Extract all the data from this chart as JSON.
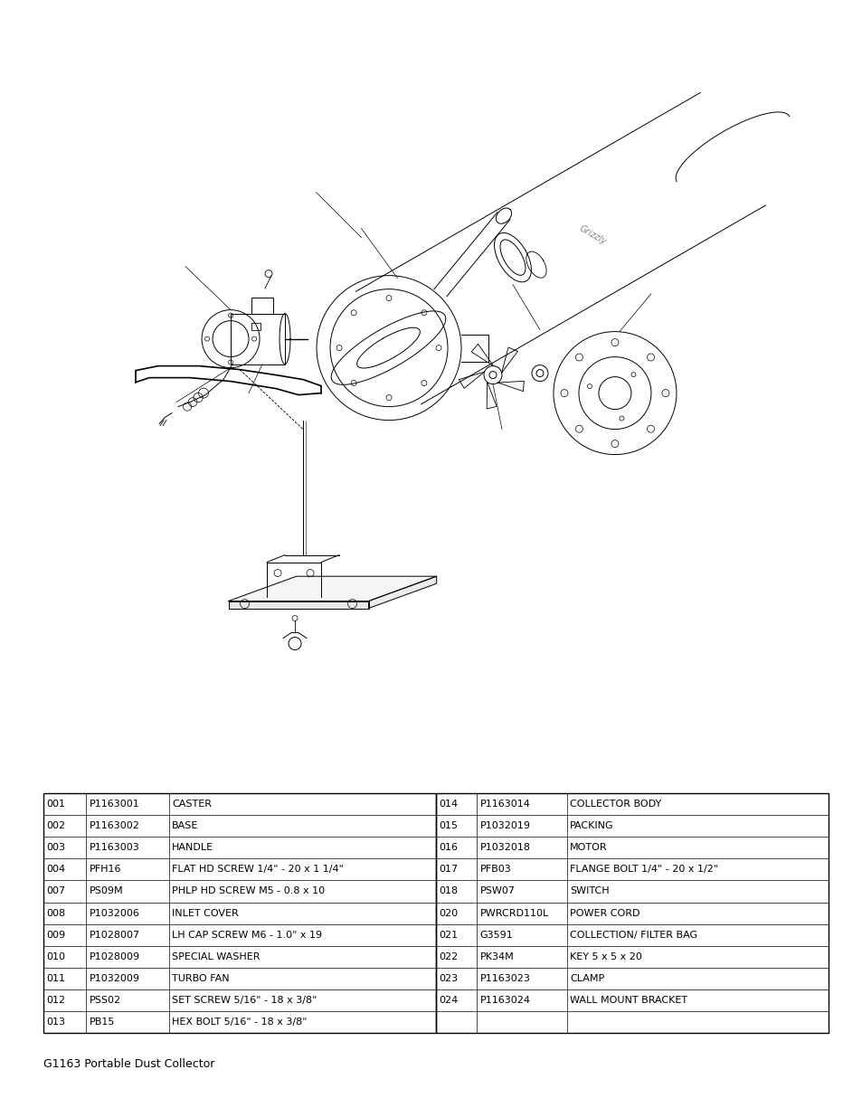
{
  "title": "G1163 Portable Dust Collector",
  "background_color": "#ffffff",
  "table_left": [
    [
      "001",
      "P1163001",
      "CASTER"
    ],
    [
      "002",
      "P1163002",
      "BASE"
    ],
    [
      "003",
      "P1163003",
      "HANDLE"
    ],
    [
      "004",
      "PFH16",
      "FLAT HD SCREW 1/4\" - 20 x 1 1/4\""
    ],
    [
      "007",
      "PS09M",
      "PHLP HD SCREW M5 - 0.8 x 10"
    ],
    [
      "008",
      "P1032006",
      "INLET COVER"
    ],
    [
      "009",
      "P1028007",
      "LH CAP SCREW M6 - 1.0\" x 19"
    ],
    [
      "010",
      "P1028009",
      "SPECIAL WASHER"
    ],
    [
      "011",
      "P1032009",
      "TURBO FAN"
    ],
    [
      "012",
      "PSS02",
      "SET SCREW 5/16\" - 18 x 3/8\""
    ],
    [
      "013",
      "PB15",
      "HEX BOLT 5/16\" - 18 x 3/8\""
    ]
  ],
  "table_right": [
    [
      "014",
      "P1163014",
      "COLLECTOR BODY"
    ],
    [
      "015",
      "P1032019",
      "PACKING"
    ],
    [
      "016",
      "P1032018",
      "MOTOR"
    ],
    [
      "017",
      "PFB03",
      "FLANGE BOLT 1/4\" - 20 x 1/2\""
    ],
    [
      "018",
      "PSW07",
      "SWITCH"
    ],
    [
      "020",
      "PWRCRD110L",
      "POWER CORD"
    ],
    [
      "021",
      "G3591",
      "COLLECTION/ FILTER BAG"
    ],
    [
      "022",
      "PK34M",
      "KEY 5 x 5 x 20"
    ],
    [
      "023",
      "P1163023",
      "CLAMP"
    ],
    [
      "024",
      "P1163024",
      "WALL MOUNT BRACKET"
    ],
    [
      "",
      "",
      ""
    ]
  ],
  "figsize": [
    9.54,
    12.35
  ],
  "dpi": 100
}
